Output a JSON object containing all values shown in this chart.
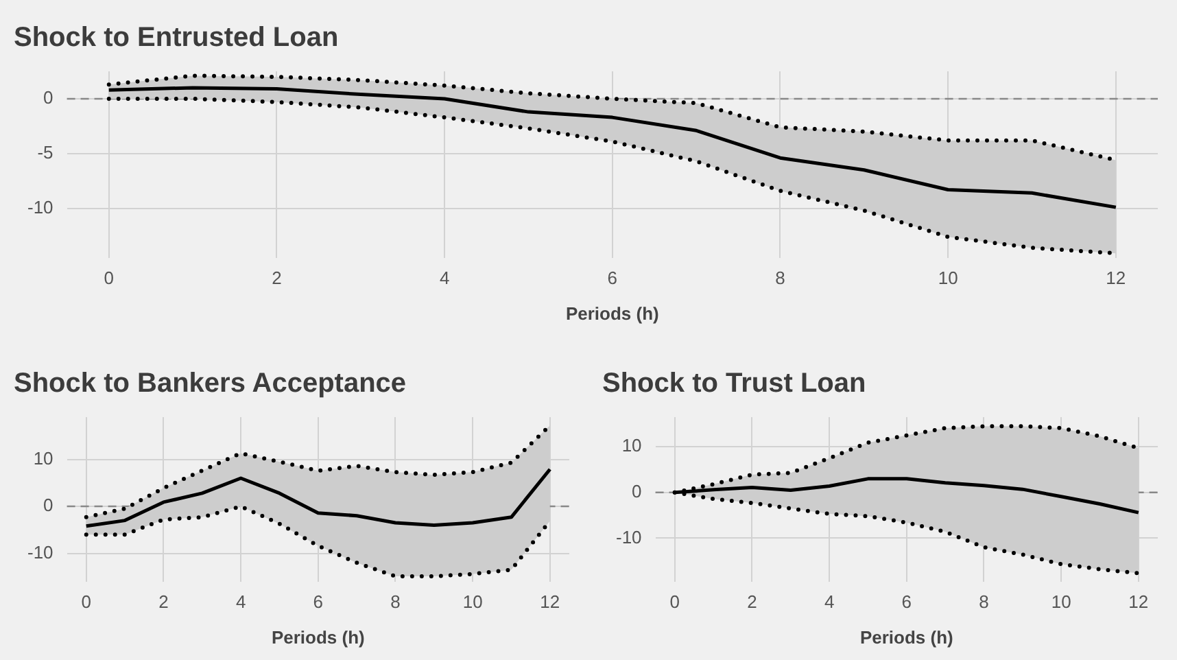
{
  "chart_data": [
    {
      "type": "line",
      "title": "Shock to Entrusted Loan",
      "xlabel": "Periods (h)",
      "x": [
        0,
        1,
        2,
        3,
        4,
        5,
        6,
        7,
        8,
        9,
        10,
        11,
        12
      ],
      "series": [
        {
          "color": "#000000",
          "values": [
            0.8,
            1.0,
            0.9,
            0.4,
            0,
            -1.2,
            -1.7,
            -2.9,
            -5.4,
            -6.5,
            -8.3,
            -8.6,
            -9.9
          ],
          "lower": [
            0,
            0,
            -0.3,
            -0.8,
            -1.7,
            -2.7,
            -3.9,
            -5.7,
            -8.4,
            -10.2,
            -12.6,
            -13.6,
            -14.1
          ],
          "upper": [
            1.3,
            2.1,
            2.0,
            1.7,
            1.2,
            0.5,
            0,
            -0.4,
            -2.6,
            -3.0,
            -3.8,
            -3.8,
            -5.6
          ]
        },
        {
          "color": "#000000",
          "line_style": "dotted",
          "values": [
            1.3,
            2.1,
            2.0,
            1.7,
            1.2,
            0.5,
            0,
            -0.4,
            -2.6,
            -3.0,
            -3.8,
            -3.8,
            -5.6
          ]
        },
        {
          "color": "#000000",
          "line_style": "dotted",
          "values": [
            0,
            0,
            -0.3,
            -0.8,
            -1.7,
            -2.7,
            -3.9,
            -5.7,
            -8.4,
            -10.2,
            -12.6,
            -13.6,
            -14.1
          ]
        }
      ],
      "xlim": [
        -0.5,
        12.5
      ],
      "xticks": [
        0,
        2,
        4,
        6,
        8,
        10,
        12
      ],
      "ylim": [
        -14.5,
        2.5
      ],
      "yticks": [
        -10,
        -5,
        0
      ],
      "ref_lines": [
        {
          "axis": "y",
          "value": 0,
          "color": "#888888",
          "line_style": "dashed"
        }
      ],
      "grid": true,
      "legend": false
    },
    {
      "type": "line",
      "title": "Shock to Bankers Acceptance",
      "xlabel": "Periods (h)",
      "x": [
        0,
        1,
        2,
        3,
        4,
        5,
        6,
        7,
        8,
        9,
        10,
        11,
        12
      ],
      "series": [
        {
          "color": "#000000",
          "values": [
            -4.2,
            -3,
            0.9,
            2.8,
            6,
            2.8,
            -1.4,
            -2,
            -3.5,
            -4,
            -3.5,
            -2.3,
            7.9
          ],
          "lower": [
            -6,
            -6,
            -2.8,
            -2.3,
            0,
            -3.7,
            -8.4,
            -12,
            -14.9,
            -14.9,
            -14.4,
            -13.5,
            -3.1
          ],
          "upper": [
            -2.3,
            -0.5,
            3.9,
            7.6,
            11.3,
            9.5,
            7.6,
            8.6,
            7.3,
            6.7,
            7.3,
            9.3,
            17.2
          ]
        },
        {
          "color": "#000000",
          "line_style": "dotted",
          "values": [
            -2.3,
            -0.5,
            3.9,
            7.6,
            11.3,
            9.5,
            7.6,
            8.6,
            7.3,
            6.7,
            7.3,
            9.3,
            17.2
          ]
        },
        {
          "color": "#000000",
          "line_style": "dotted",
          "values": [
            -6,
            -6,
            -2.8,
            -2.3,
            0,
            -3.7,
            -8.4,
            -12,
            -14.9,
            -14.9,
            -14.4,
            -13.5,
            -3.1
          ]
        }
      ],
      "xlim": [
        -0.5,
        12.5
      ],
      "xticks": [
        0,
        2,
        4,
        6,
        8,
        10,
        12
      ],
      "ylim": [
        -16,
        19
      ],
      "yticks": [
        -10,
        0,
        10
      ],
      "ref_lines": [
        {
          "axis": "y",
          "value": 0,
          "color": "#888888",
          "line_style": "dashed"
        }
      ],
      "grid": true,
      "legend": false
    },
    {
      "type": "line",
      "title": "Shock to Trust Loan",
      "xlabel": "Periods (h)",
      "x": [
        0,
        1,
        2,
        3,
        4,
        5,
        6,
        7,
        8,
        9,
        10,
        11,
        12
      ],
      "series": [
        {
          "color": "#000000",
          "values": [
            0,
            0.6,
            1.1,
            0.5,
            1.4,
            3,
            3,
            2.1,
            1.5,
            0.7,
            -0.9,
            -2.5,
            -4.4
          ],
          "lower": [
            0,
            -1.4,
            -2.3,
            -3.5,
            -4.7,
            -5.2,
            -6.6,
            -8.6,
            -12,
            -13.6,
            -15.7,
            -16.8,
            -17.7
          ],
          "upper": [
            0,
            1.8,
            3.9,
            4.3,
            7.5,
            10.9,
            12.5,
            14.1,
            14.5,
            14.5,
            14.1,
            12.3,
            9.7
          ]
        },
        {
          "color": "#000000",
          "line_style": "dotted",
          "values": [
            0,
            1.8,
            3.9,
            4.3,
            7.5,
            10.9,
            12.5,
            14.1,
            14.5,
            14.5,
            14.1,
            12.3,
            9.7
          ]
        },
        {
          "color": "#000000",
          "line_style": "dotted",
          "values": [
            0,
            -1.4,
            -2.3,
            -3.5,
            -4.7,
            -5.2,
            -6.6,
            -8.6,
            -12,
            -13.6,
            -15.7,
            -16.8,
            -17.7
          ]
        }
      ],
      "xlim": [
        -0.5,
        12.5
      ],
      "xticks": [
        0,
        2,
        4,
        6,
        8,
        10,
        12
      ],
      "ylim": [
        -19.5,
        16.5
      ],
      "yticks": [
        -10,
        0,
        10
      ],
      "ref_lines": [
        {
          "axis": "y",
          "value": 0,
          "color": "#888888",
          "line_style": "dashed"
        }
      ],
      "grid": true,
      "legend": false
    }
  ]
}
